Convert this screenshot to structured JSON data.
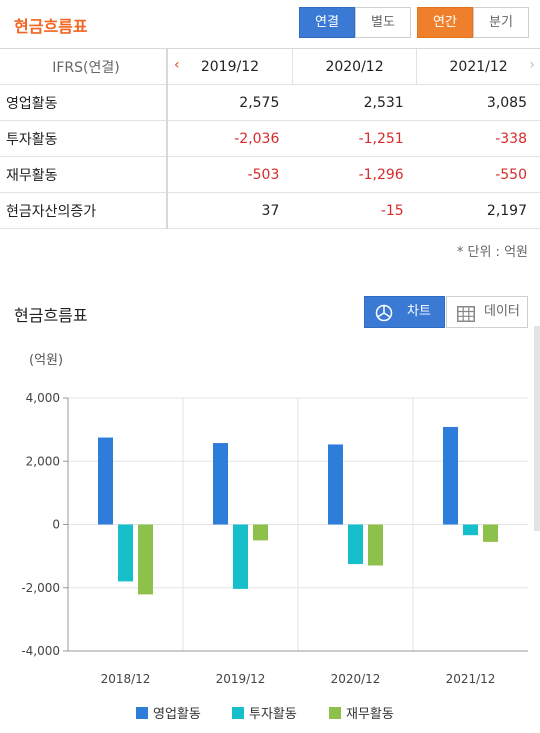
{
  "header": {
    "title": "현금흐름표",
    "tabs": [
      "연결",
      "별도"
    ],
    "periods": [
      "연간",
      "분기"
    ]
  },
  "table": {
    "head_label": "IFRS(연결)",
    "years": [
      "2019/12",
      "2020/12",
      "2021/12"
    ],
    "rows": [
      {
        "label": "영업활동",
        "values": [
          "2,575",
          "2,531",
          "3,085"
        ]
      },
      {
        "label": "투자활동",
        "values": [
          "-2,036",
          "-1,251",
          "-338"
        ]
      },
      {
        "label": "재무활동",
        "values": [
          "-503",
          "-1,296",
          "-550"
        ]
      },
      {
        "label": "현금자산의증가",
        "values": [
          "37",
          "-15",
          "2,197"
        ]
      }
    ],
    "unit": "* 단위 : 억원"
  },
  "chart_section": {
    "title": "현금흐름표",
    "toggle_chart": "차트",
    "toggle_data": "데이터"
  },
  "chart_data": {
    "type": "bar",
    "title": "",
    "ylabel": "(억원)",
    "xlabel": "",
    "categories": [
      "2018/12",
      "2019/12",
      "2020/12",
      "2021/12"
    ],
    "ylim": [
      -4000,
      4000
    ],
    "yticks": [
      4000,
      2000,
      0,
      -2000,
      -4000
    ],
    "ytick_labels": [
      "4,000",
      "2,000",
      "0",
      "-2,000",
      "-4,000"
    ],
    "grid": true,
    "legend_position": "bottom",
    "series": [
      {
        "name": "영업활동",
        "color": "#2e7ddb",
        "values": [
          2750,
          2575,
          2531,
          3085
        ]
      },
      {
        "name": "투자활동",
        "color": "#17bfcb",
        "values": [
          -1800,
          -2036,
          -1251,
          -338
        ]
      },
      {
        "name": "재무활동",
        "color": "#8dc14b",
        "values": [
          -2210,
          -503,
          -1296,
          -550
        ]
      }
    ]
  }
}
